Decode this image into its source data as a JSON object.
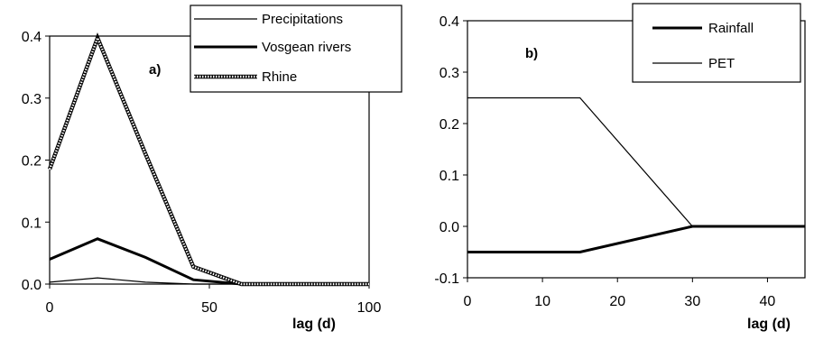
{
  "chart_data": [
    {
      "type": "line",
      "panel_label": "a)",
      "xlabel": "lag (d)",
      "ylabel": "",
      "xlim": [
        0,
        100
      ],
      "ylim": [
        0,
        0.4
      ],
      "xticks": [
        "0",
        "50",
        "100"
      ],
      "yticks": [
        "0.0",
        "0.1",
        "0.2",
        "0.3",
        "0.4"
      ],
      "legend_position": "top-right",
      "series": [
        {
          "name": "Precipitations",
          "style": "thin",
          "x": [
            0,
            15,
            30,
            45,
            60,
            75,
            90,
            100
          ],
          "y": [
            0.003,
            0.01,
            0.003,
            0.0,
            0.0,
            0.0,
            0.0,
            0.0
          ]
        },
        {
          "name": "Vosgean rivers",
          "style": "thick",
          "x": [
            0,
            15,
            30,
            45,
            60,
            75,
            90,
            100
          ],
          "y": [
            0.04,
            0.073,
            0.043,
            0.007,
            0.0,
            0.0,
            0.0,
            0.0
          ]
        },
        {
          "name": "Rhine",
          "style": "hatched",
          "x": [
            0,
            15,
            30,
            45,
            60,
            75,
            90,
            100
          ],
          "y": [
            0.185,
            0.397,
            0.21,
            0.028,
            0.0,
            0.0,
            0.0,
            0.0
          ]
        }
      ]
    },
    {
      "type": "line",
      "panel_label": "b)",
      "xlabel": "lag (d)",
      "ylabel": "",
      "xlim": [
        0,
        45
      ],
      "ylim": [
        -0.1,
        0.4
      ],
      "xticks": [
        "0",
        "10",
        "20",
        "30",
        "40"
      ],
      "yticks": [
        "-0.1",
        "0.0",
        "0.1",
        "0.2",
        "0.3",
        "0.4"
      ],
      "legend_position": "top-right",
      "series": [
        {
          "name": "Rainfall",
          "style": "thick",
          "x": [
            0,
            15,
            30,
            45
          ],
          "y": [
            -0.05,
            -0.05,
            0.0,
            0.0
          ]
        },
        {
          "name": "PET",
          "style": "thin",
          "x": [
            0,
            15,
            30,
            45
          ],
          "y": [
            0.25,
            0.25,
            0.0,
            0.0
          ]
        }
      ]
    }
  ]
}
